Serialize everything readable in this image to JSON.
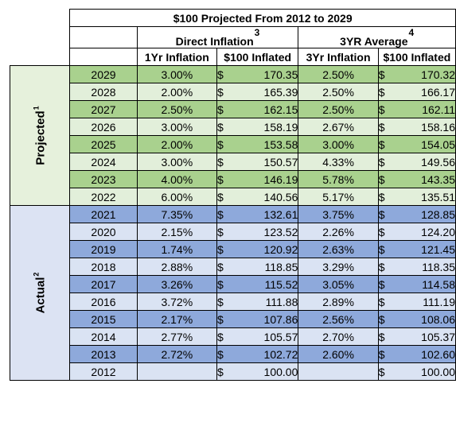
{
  "title": "$100 Projected From 2012 to 2029",
  "groups": {
    "direct": {
      "label": "Direct Inflation",
      "note": "3"
    },
    "avg": {
      "label": "3YR Average",
      "note": "4"
    }
  },
  "subheaders": {
    "direct_rate": "1Yr Inflation",
    "direct_amt": "$100 Inflated",
    "avg_rate": "3Yr Inflation",
    "avg_amt": "$100 Inflated"
  },
  "sides": {
    "projected": {
      "label": "Projected",
      "note": "1"
    },
    "actual": {
      "label": "Actual",
      "note": "2"
    }
  },
  "currency_symbol": "$",
  "rows": [
    {
      "year": "2029",
      "d_rate": "3.00%",
      "d_amt": "170.35",
      "a_rate": "2.50%",
      "a_amt": "170.32"
    },
    {
      "year": "2028",
      "d_rate": "2.00%",
      "d_amt": "165.39",
      "a_rate": "2.50%",
      "a_amt": "166.17"
    },
    {
      "year": "2027",
      "d_rate": "2.50%",
      "d_amt": "162.15",
      "a_rate": "2.50%",
      "a_amt": "162.11"
    },
    {
      "year": "2026",
      "d_rate": "3.00%",
      "d_amt": "158.19",
      "a_rate": "2.67%",
      "a_amt": "158.16"
    },
    {
      "year": "2025",
      "d_rate": "2.00%",
      "d_amt": "153.58",
      "a_rate": "3.00%",
      "a_amt": "154.05"
    },
    {
      "year": "2024",
      "d_rate": "3.00%",
      "d_amt": "150.57",
      "a_rate": "4.33%",
      "a_amt": "149.56"
    },
    {
      "year": "2023",
      "d_rate": "4.00%",
      "d_amt": "146.19",
      "a_rate": "5.78%",
      "a_amt": "143.35"
    },
    {
      "year": "2022",
      "d_rate": "6.00%",
      "d_amt": "140.56",
      "a_rate": "5.17%",
      "a_amt": "135.51"
    },
    {
      "year": "2021",
      "d_rate": "7.35%",
      "d_amt": "132.61",
      "a_rate": "3.75%",
      "a_amt": "128.85"
    },
    {
      "year": "2020",
      "d_rate": "2.15%",
      "d_amt": "123.52",
      "a_rate": "2.26%",
      "a_amt": "124.20"
    },
    {
      "year": "2019",
      "d_rate": "1.74%",
      "d_amt": "120.92",
      "a_rate": "2.63%",
      "a_amt": "121.45"
    },
    {
      "year": "2018",
      "d_rate": "2.88%",
      "d_amt": "118.85",
      "a_rate": "3.29%",
      "a_amt": "118.35"
    },
    {
      "year": "2017",
      "d_rate": "3.26%",
      "d_amt": "115.52",
      "a_rate": "3.05%",
      "a_amt": "114.58"
    },
    {
      "year": "2016",
      "d_rate": "3.72%",
      "d_amt": "111.88",
      "a_rate": "2.89%",
      "a_amt": "111.19"
    },
    {
      "year": "2015",
      "d_rate": "2.17%",
      "d_amt": "107.86",
      "a_rate": "2.56%",
      "a_amt": "108.06"
    },
    {
      "year": "2014",
      "d_rate": "2.77%",
      "d_amt": "105.57",
      "a_rate": "2.70%",
      "a_amt": "105.37"
    },
    {
      "year": "2013",
      "d_rate": "2.72%",
      "d_amt": "102.72",
      "a_rate": "2.60%",
      "a_amt": "102.60"
    },
    {
      "year": "2012",
      "d_rate": "",
      "d_amt": "100.00",
      "a_rate": "",
      "a_amt": "100.00"
    }
  ],
  "colors": {
    "projected_dark": "#a9d18e",
    "projected_light": "#e2efda",
    "actual_dark": "#8ea9db",
    "actual_light": "#dae3f3"
  }
}
